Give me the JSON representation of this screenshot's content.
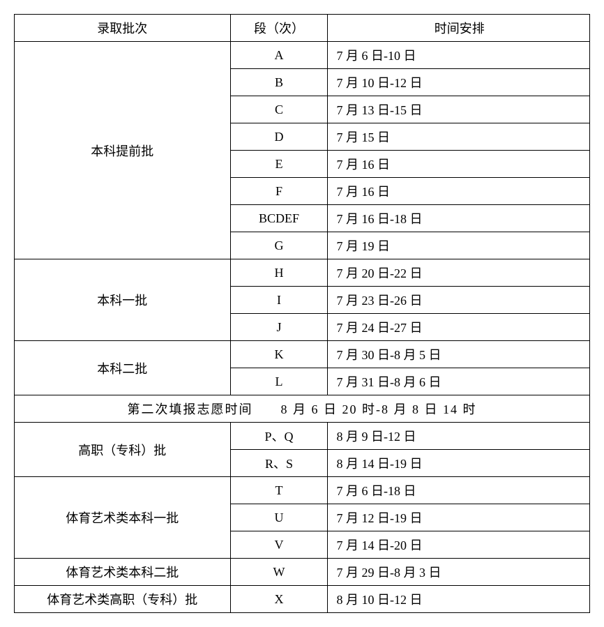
{
  "headers": {
    "batch": "录取批次",
    "segment": "段（次）",
    "time": "时间安排"
  },
  "groups": [
    {
      "batch": "本科提前批",
      "rows": [
        {
          "segment": "A",
          "time": "7 月 6 日-10 日"
        },
        {
          "segment": "B",
          "time": "7 月 10 日-12 日"
        },
        {
          "segment": "C",
          "time": "7 月 13 日-15 日"
        },
        {
          "segment": "D",
          "time": "7 月 15 日"
        },
        {
          "segment": "E",
          "time": "7 月 16 日"
        },
        {
          "segment": "F",
          "time": "7 月 16 日"
        },
        {
          "segment": "BCDEF",
          "time": "7 月 16 日-18 日"
        },
        {
          "segment": "G",
          "time": "7 月 19 日"
        }
      ]
    },
    {
      "batch": "本科一批",
      "rows": [
        {
          "segment": "H",
          "time": "7 月 20 日-22 日"
        },
        {
          "segment": "I",
          "time": "7 月 23 日-26 日"
        },
        {
          "segment": "J",
          "time": "7 月 24 日-27 日"
        }
      ]
    },
    {
      "batch": "本科二批",
      "rows": [
        {
          "segment": "K",
          "time": "7 月 30 日-8 月 5 日"
        },
        {
          "segment": "L",
          "time": "7 月 31 日-8 月 6 日"
        }
      ]
    }
  ],
  "mergedRow": "第二次填报志愿时间　　8 月 6 日 20 时-8 月 8 日 14 时",
  "groups2": [
    {
      "batch": "高职（专科）批",
      "rows": [
        {
          "segment": "P、Q",
          "time": "8 月 9 日-12 日"
        },
        {
          "segment": "R、S",
          "time": "8 月 14 日-19 日"
        }
      ]
    },
    {
      "batch": "体育艺术类本科一批",
      "rows": [
        {
          "segment": "T",
          "time": "7 月 6 日-18 日"
        },
        {
          "segment": "U",
          "time": "7 月 12 日-19 日"
        },
        {
          "segment": "V",
          "time": "7 月 14 日-20 日"
        }
      ]
    },
    {
      "batch": "体育艺术类本科二批",
      "rows": [
        {
          "segment": "W",
          "time": "7 月 29 日-8 月 3 日"
        }
      ]
    },
    {
      "batch": "体育艺术类高职（专科）批",
      "rows": [
        {
          "segment": "X",
          "time": "8 月 10 日-12 日"
        }
      ]
    }
  ]
}
